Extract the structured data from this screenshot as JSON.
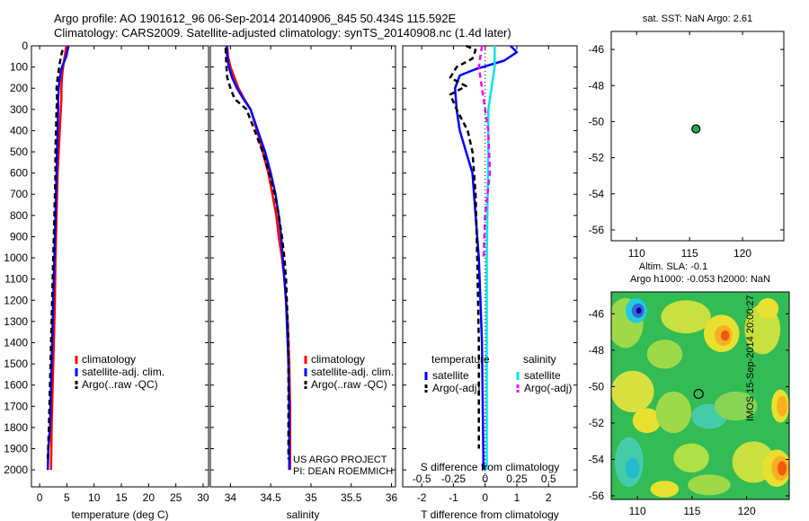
{
  "header": {
    "line1": "Argo profile: AO 1901612_96 06-Sep-2014 20140906_845 50.434S 115.592E",
    "line2": "Climatology: CARS2009. Satellite-adjusted climatology: synTS_20140908.nc (1.4d later)"
  },
  "credit": {
    "line1": "US ARGO PROJECT",
    "line2": "PI: DEAN ROEMMICH"
  },
  "timestamp": "IMOS 15-Sep-2014 20:00:27",
  "colors": {
    "climatology": "#ff0000",
    "satellite": "#0000ff",
    "argo": "#000000",
    "sal_satellite": "#00e5e5",
    "sal_argo": "#ff00ff"
  },
  "chart_data": [
    {
      "id": "temperature",
      "type": "line",
      "xlabel": "temperature (deg C)",
      "xlim": [
        -1.5,
        31
      ],
      "xticks": [
        0,
        5,
        10,
        15,
        20,
        25,
        30
      ],
      "ylim": [
        2080,
        0
      ],
      "yticks": [
        0,
        100,
        200,
        300,
        400,
        500,
        600,
        700,
        800,
        900,
        1000,
        1100,
        1200,
        1300,
        1400,
        1500,
        1600,
        1700,
        1800,
        1900,
        2000
      ],
      "legend": [
        "climatology",
        "satellite-adj. clim.",
        "Argo(..raw -QC)"
      ],
      "series": [
        {
          "name": "climatology",
          "color": "#ff0000",
          "dash": false,
          "points": [
            [
              4.9,
              0
            ],
            [
              4.6,
              50
            ],
            [
              4.3,
              100
            ],
            [
              4.1,
              150
            ],
            [
              4.0,
              200
            ],
            [
              4.0,
              250
            ],
            [
              3.9,
              300
            ],
            [
              3.7,
              400
            ],
            [
              3.5,
              500
            ],
            [
              3.3,
              600
            ],
            [
              3.2,
              700
            ],
            [
              3.1,
              800
            ],
            [
              3.0,
              900
            ],
            [
              2.9,
              1000
            ],
            [
              2.8,
              1200
            ],
            [
              2.6,
              1400
            ],
            [
              2.4,
              1600
            ],
            [
              2.2,
              1800
            ],
            [
              2.1,
              2000
            ]
          ]
        },
        {
          "name": "satellite-adj. clim.",
          "color": "#0000ff",
          "dash": false,
          "points": [
            [
              5.3,
              0
            ],
            [
              4.9,
              50
            ],
            [
              4.1,
              100
            ],
            [
              3.7,
              150
            ],
            [
              3.5,
              200
            ],
            [
              3.4,
              250
            ],
            [
              3.4,
              300
            ],
            [
              3.3,
              400
            ],
            [
              3.2,
              500
            ],
            [
              3.1,
              600
            ],
            [
              3.0,
              700
            ],
            [
              2.9,
              800
            ],
            [
              2.8,
              900
            ],
            [
              2.7,
              1000
            ],
            [
              2.5,
              1200
            ],
            [
              2.3,
              1400
            ],
            [
              2.1,
              1600
            ],
            [
              1.9,
              1800
            ],
            [
              1.6,
              1900
            ],
            [
              1.5,
              2000
            ]
          ]
        },
        {
          "name": "Argo(..raw -QC)",
          "color": "#000000",
          "dash": true,
          "points": [
            [
              4.2,
              20
            ],
            [
              3.9,
              50
            ],
            [
              3.6,
              100
            ],
            [
              3.3,
              150
            ],
            [
              3.1,
              200
            ],
            [
              3.2,
              250
            ],
            [
              3.1,
              300
            ],
            [
              3.0,
              400
            ],
            [
              2.9,
              500
            ],
            [
              2.9,
              600
            ],
            [
              2.8,
              700
            ],
            [
              2.7,
              800
            ],
            [
              2.6,
              900
            ],
            [
              2.5,
              1000
            ],
            [
              2.3,
              1200
            ],
            [
              2.1,
              1400
            ],
            [
              1.9,
              1600
            ],
            [
              1.7,
              1800
            ],
            [
              1.5,
              1950
            ]
          ]
        }
      ]
    },
    {
      "id": "salinity",
      "type": "line",
      "xlabel": "salinity",
      "xlim": [
        33.75,
        36.05
      ],
      "xticks": [
        34,
        34.5,
        35,
        35.5,
        36
      ],
      "ylim": [
        2080,
        0
      ],
      "legend": [
        "climatology",
        "satellite-adj. clim.",
        "Argo(..raw -QC)"
      ],
      "series": [
        {
          "name": "climatology",
          "color": "#ff0000",
          "dash": false,
          "points": [
            [
              33.96,
              0
            ],
            [
              33.97,
              50
            ],
            [
              34.0,
              100
            ],
            [
              34.05,
              150
            ],
            [
              34.1,
              200
            ],
            [
              34.17,
              250
            ],
            [
              34.25,
              300
            ],
            [
              34.33,
              400
            ],
            [
              34.4,
              500
            ],
            [
              34.47,
              600
            ],
            [
              34.52,
              700
            ],
            [
              34.57,
              800
            ],
            [
              34.6,
              900
            ],
            [
              34.64,
              1000
            ],
            [
              34.67,
              1100
            ],
            [
              34.69,
              1200
            ],
            [
              34.71,
              1300
            ],
            [
              34.72,
              1400
            ],
            [
              34.73,
              1500
            ],
            [
              34.74,
              1700
            ],
            [
              34.74,
              2000
            ]
          ]
        },
        {
          "name": "satellite-adj. clim.",
          "color": "#0000ff",
          "dash": false,
          "points": [
            [
              33.95,
              0
            ],
            [
              33.96,
              50
            ],
            [
              33.98,
              100
            ],
            [
              34.02,
              150
            ],
            [
              34.08,
              200
            ],
            [
              34.16,
              250
            ],
            [
              34.25,
              300
            ],
            [
              34.34,
              400
            ],
            [
              34.43,
              500
            ],
            [
              34.5,
              600
            ],
            [
              34.56,
              700
            ],
            [
              34.6,
              800
            ],
            [
              34.63,
              900
            ],
            [
              34.65,
              1000
            ],
            [
              34.67,
              1100
            ],
            [
              34.69,
              1200
            ],
            [
              34.7,
              1300
            ],
            [
              34.71,
              1400
            ],
            [
              34.72,
              1500
            ],
            [
              34.73,
              1700
            ],
            [
              34.73,
              2000
            ]
          ]
        },
        {
          "name": "Argo(..raw -QC)",
          "color": "#000000",
          "dash": true,
          "points": [
            [
              33.94,
              10
            ],
            [
              33.95,
              100
            ],
            [
              33.96,
              150
            ],
            [
              34.0,
              200
            ],
            [
              34.05,
              250
            ],
            [
              34.2,
              300
            ],
            [
              34.3,
              400
            ],
            [
              34.4,
              500
            ],
            [
              34.48,
              600
            ],
            [
              34.55,
              700
            ],
            [
              34.6,
              800
            ],
            [
              34.64,
              900
            ],
            [
              34.67,
              1000
            ],
            [
              34.69,
              1100
            ],
            [
              34.7,
              1200
            ],
            [
              34.71,
              1300
            ],
            [
              34.72,
              1400
            ],
            [
              34.72,
              1500
            ],
            [
              34.72,
              1700
            ],
            [
              34.72,
              1950
            ]
          ]
        }
      ]
    },
    {
      "id": "difference",
      "type": "line",
      "xlabel": "T difference from climatology",
      "xlabel_top": "S difference from climatology",
      "xlim": [
        -2.6,
        2.9
      ],
      "xticks": [
        -2,
        -1,
        0,
        1,
        2
      ],
      "top_ticks": [
        -0.5,
        -0.25,
        0,
        0.25,
        0.5
      ],
      "top_tick_labels": [
        "-0.5",
        "-0.25",
        "0",
        "0.25",
        "0.5"
      ],
      "ylim": [
        2080,
        0
      ],
      "legend_titles": [
        "temperature",
        "salinity"
      ],
      "legend": [
        "satellite",
        "Argo(-adj)",
        "satellite",
        "Argo(-adj)"
      ],
      "series": [
        {
          "name": "temperature satellite",
          "color": "#0000ff",
          "dash": false,
          "points": [
            [
              0.8,
              0
            ],
            [
              1.0,
              30
            ],
            [
              0.6,
              70
            ],
            [
              -0.3,
              110
            ],
            [
              -0.8,
              140
            ],
            [
              -0.95,
              200
            ],
            [
              -0.9,
              300
            ],
            [
              -0.8,
              400
            ],
            [
              -0.6,
              500
            ],
            [
              -0.4,
              600
            ],
            [
              -0.3,
              800
            ],
            [
              -0.2,
              1000
            ],
            [
              -0.1,
              1400
            ],
            [
              -0.05,
              2000
            ]
          ]
        },
        {
          "name": "temperature Argo(-adj)",
          "color": "#000000",
          "dash": true,
          "points": [
            [
              -0.6,
              0
            ],
            [
              -0.3,
              20
            ],
            [
              -0.4,
              60
            ],
            [
              -0.9,
              100
            ],
            [
              -1.1,
              150
            ],
            [
              -0.6,
              190
            ],
            [
              -1.1,
              230
            ],
            [
              -0.9,
              300
            ],
            [
              -0.55,
              400
            ],
            [
              -0.4,
              500
            ],
            [
              -0.3,
              700
            ],
            [
              -0.25,
              1000
            ],
            [
              -0.2,
              1400
            ],
            [
              -0.2,
              1900
            ]
          ]
        },
        {
          "name": "salinity satellite",
          "color": "#00e5e5",
          "dash": false,
          "points": [
            [
              0.3,
              0
            ],
            [
              0.3,
              100
            ],
            [
              0.2,
              200
            ],
            [
              0.1,
              300
            ],
            [
              0.1,
              500
            ],
            [
              0.05,
              1000
            ],
            [
              0.05,
              2000
            ]
          ]
        },
        {
          "name": "salinity Argo(-adj)",
          "color": "#ff00ff",
          "dash": true,
          "points": [
            [
              -0.1,
              0
            ],
            [
              -0.2,
              100
            ],
            [
              -0.1,
              200
            ],
            [
              0.0,
              300
            ],
            [
              0.1,
              400
            ],
            [
              0.15,
              600
            ],
            [
              0.0,
              800
            ],
            [
              -0.05,
              1000
            ]
          ]
        }
      ]
    },
    {
      "id": "sst_map",
      "type": "scatter",
      "title": "sat. SST: NaN Argo: 2.61",
      "xlim": [
        107.6,
        123.9
      ],
      "xticks": [
        110,
        115,
        120
      ],
      "ylim": [
        -56.6,
        -45
      ],
      "yticks": [
        -46,
        -48,
        -50,
        -52,
        -54,
        -56
      ],
      "points": [
        [
          115.6,
          -50.4
        ]
      ]
    },
    {
      "id": "sla_map",
      "type": "heatmap",
      "title_line1": "Altim. SLA: -0.1",
      "title_line2": "Argo h1000: -0.053 h2000: NaN",
      "xlim": [
        107.6,
        123.9
      ],
      "xticks": [
        110,
        115,
        120
      ],
      "ylim": [
        -56.2,
        -44.8
      ],
      "yticks": [
        -46,
        -48,
        -50,
        -52,
        -54,
        -56
      ],
      "marker": [
        115.6,
        -50.4
      ]
    }
  ]
}
